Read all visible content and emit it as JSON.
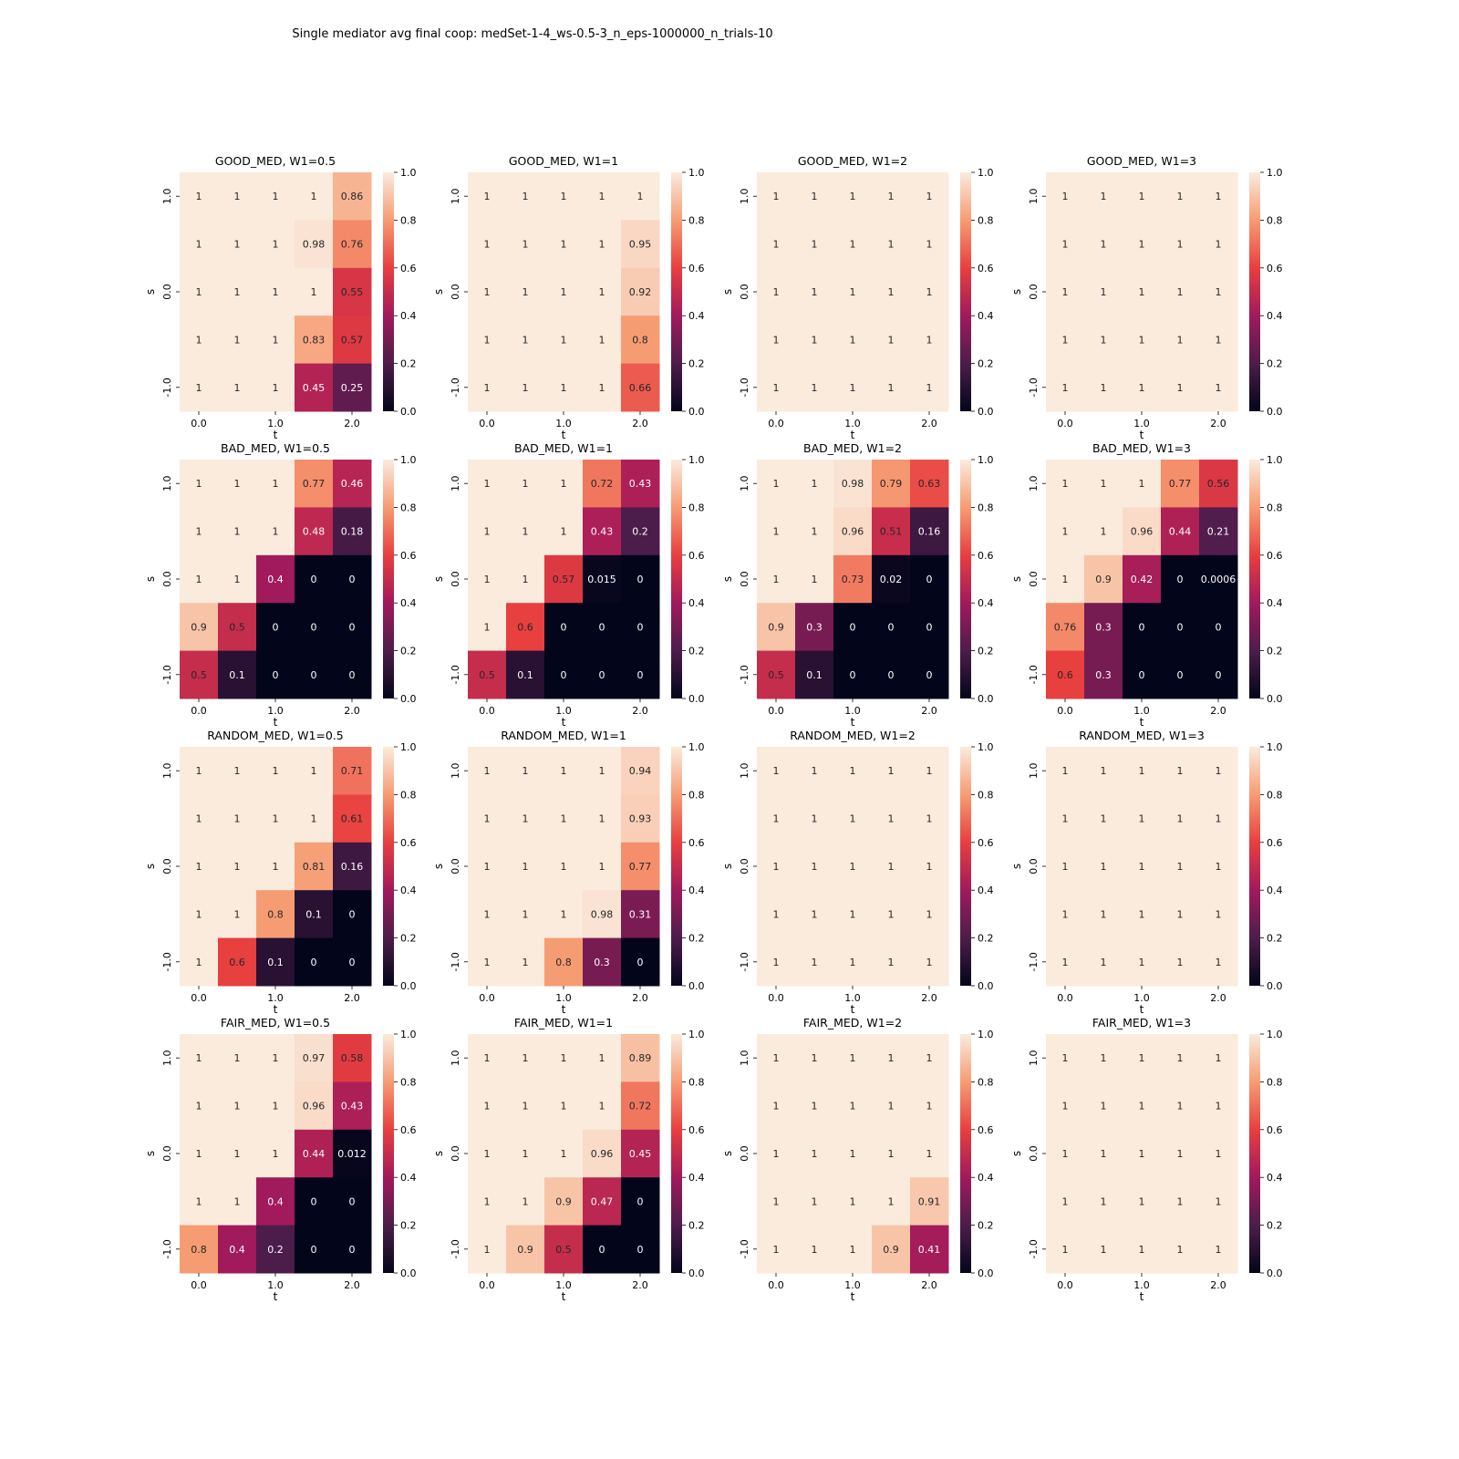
{
  "chart_data": {
    "type": "heatmap",
    "title": "Single mediator avg final coop: medSet-1-4_ws-0.5-3_n_eps-1000000_n_trials-10",
    "xlabel": "t",
    "ylabel": "s",
    "x_tick_labels": [
      "0.0",
      "1.0",
      "2.0"
    ],
    "y_tick_labels": [
      "1.0",
      "0.0",
      "-1.0"
    ],
    "colorbar": {
      "ticks": [
        "0.0",
        "0.2",
        "0.4",
        "0.6",
        "0.8",
        "1.0"
      ],
      "range": [
        0,
        1
      ],
      "colormap": "rocket",
      "stops": [
        "#03051a",
        "#4c1d4b",
        "#a11a5b",
        "#e83f3f",
        "#f69c73",
        "#faebdd"
      ]
    },
    "panels": [
      {
        "title": "GOOD_MED, W1=0.5",
        "rows": [
          [
            "1",
            "1",
            "1",
            "1",
            "0.86"
          ],
          [
            "1",
            "1",
            "1",
            "0.98",
            "0.76"
          ],
          [
            "1",
            "1",
            "1",
            "1",
            "0.55"
          ],
          [
            "1",
            "1",
            "1",
            "0.83",
            "0.57"
          ],
          [
            "1",
            "1",
            "1",
            "0.45",
            "0.25"
          ]
        ]
      },
      {
        "title": "GOOD_MED, W1=1",
        "rows": [
          [
            "1",
            "1",
            "1",
            "1",
            "1"
          ],
          [
            "1",
            "1",
            "1",
            "1",
            "0.95"
          ],
          [
            "1",
            "1",
            "1",
            "1",
            "0.92"
          ],
          [
            "1",
            "1",
            "1",
            "1",
            "0.8"
          ],
          [
            "1",
            "1",
            "1",
            "1",
            "0.66"
          ]
        ]
      },
      {
        "title": "GOOD_MED, W1=2",
        "rows": [
          [
            "1",
            "1",
            "1",
            "1",
            "1"
          ],
          [
            "1",
            "1",
            "1",
            "1",
            "1"
          ],
          [
            "1",
            "1",
            "1",
            "1",
            "1"
          ],
          [
            "1",
            "1",
            "1",
            "1",
            "1"
          ],
          [
            "1",
            "1",
            "1",
            "1",
            "1"
          ]
        ]
      },
      {
        "title": "GOOD_MED, W1=3",
        "rows": [
          [
            "1",
            "1",
            "1",
            "1",
            "1"
          ],
          [
            "1",
            "1",
            "1",
            "1",
            "1"
          ],
          [
            "1",
            "1",
            "1",
            "1",
            "1"
          ],
          [
            "1",
            "1",
            "1",
            "1",
            "1"
          ],
          [
            "1",
            "1",
            "1",
            "1",
            "1"
          ]
        ]
      },
      {
        "title": "BAD_MED, W1=0.5",
        "rows": [
          [
            "1",
            "1",
            "1",
            "0.77",
            "0.46"
          ],
          [
            "1",
            "1",
            "1",
            "0.48",
            "0.18"
          ],
          [
            "1",
            "1",
            "0.4",
            "0",
            "0"
          ],
          [
            "0.9",
            "0.5",
            "0",
            "0",
            "0"
          ],
          [
            "0.5",
            "0.1",
            "0",
            "0",
            "0"
          ]
        ]
      },
      {
        "title": "BAD_MED, W1=1",
        "rows": [
          [
            "1",
            "1",
            "1",
            "0.72",
            "0.43"
          ],
          [
            "1",
            "1",
            "1",
            "0.43",
            "0.2"
          ],
          [
            "1",
            "1",
            "0.57",
            "0.015",
            "0"
          ],
          [
            "1",
            "0.6",
            "0",
            "0",
            "0"
          ],
          [
            "0.5",
            "0.1",
            "0",
            "0",
            "0"
          ]
        ]
      },
      {
        "title": "BAD_MED, W1=2",
        "rows": [
          [
            "1",
            "1",
            "0.98",
            "0.79",
            "0.63"
          ],
          [
            "1",
            "1",
            "0.96",
            "0.51",
            "0.16"
          ],
          [
            "1",
            "1",
            "0.73",
            "0.02",
            "0"
          ],
          [
            "0.9",
            "0.3",
            "0",
            "0",
            "0"
          ],
          [
            "0.5",
            "0.1",
            "0",
            "0",
            "0"
          ]
        ]
      },
      {
        "title": "BAD_MED, W1=3",
        "rows": [
          [
            "1",
            "1",
            "1",
            "0.77",
            "0.56"
          ],
          [
            "1",
            "1",
            "0.96",
            "0.44",
            "0.21"
          ],
          [
            "1",
            "0.9",
            "0.42",
            "0",
            "0.0006"
          ],
          [
            "0.76",
            "0.3",
            "0",
            "0",
            "0"
          ],
          [
            "0.6",
            "0.3",
            "0",
            "0",
            "0"
          ]
        ]
      },
      {
        "title": "RANDOM_MED, W1=0.5",
        "rows": [
          [
            "1",
            "1",
            "1",
            "1",
            "0.71"
          ],
          [
            "1",
            "1",
            "1",
            "1",
            "0.61"
          ],
          [
            "1",
            "1",
            "1",
            "0.81",
            "0.16"
          ],
          [
            "1",
            "1",
            "0.8",
            "0.1",
            "0"
          ],
          [
            "1",
            "0.6",
            "0.1",
            "0",
            "0"
          ]
        ]
      },
      {
        "title": "RANDOM_MED, W1=1",
        "rows": [
          [
            "1",
            "1",
            "1",
            "1",
            "0.94"
          ],
          [
            "1",
            "1",
            "1",
            "1",
            "0.93"
          ],
          [
            "1",
            "1",
            "1",
            "1",
            "0.77"
          ],
          [
            "1",
            "1",
            "1",
            "0.98",
            "0.31"
          ],
          [
            "1",
            "1",
            "0.8",
            "0.3",
            "0"
          ]
        ]
      },
      {
        "title": "RANDOM_MED, W1=2",
        "rows": [
          [
            "1",
            "1",
            "1",
            "1",
            "1"
          ],
          [
            "1",
            "1",
            "1",
            "1",
            "1"
          ],
          [
            "1",
            "1",
            "1",
            "1",
            "1"
          ],
          [
            "1",
            "1",
            "1",
            "1",
            "1"
          ],
          [
            "1",
            "1",
            "1",
            "1",
            "1"
          ]
        ]
      },
      {
        "title": "RANDOM_MED, W1=3",
        "rows": [
          [
            "1",
            "1",
            "1",
            "1",
            "1"
          ],
          [
            "1",
            "1",
            "1",
            "1",
            "1"
          ],
          [
            "1",
            "1",
            "1",
            "1",
            "1"
          ],
          [
            "1",
            "1",
            "1",
            "1",
            "1"
          ],
          [
            "1",
            "1",
            "1",
            "1",
            "1"
          ]
        ]
      },
      {
        "title": "FAIR_MED, W1=0.5",
        "rows": [
          [
            "1",
            "1",
            "1",
            "0.97",
            "0.58"
          ],
          [
            "1",
            "1",
            "1",
            "0.96",
            "0.43"
          ],
          [
            "1",
            "1",
            "1",
            "0.44",
            "0.012"
          ],
          [
            "1",
            "1",
            "0.4",
            "0",
            "0"
          ],
          [
            "0.8",
            "0.4",
            "0.2",
            "0",
            "0"
          ]
        ]
      },
      {
        "title": "FAIR_MED, W1=1",
        "rows": [
          [
            "1",
            "1",
            "1",
            "1",
            "0.89"
          ],
          [
            "1",
            "1",
            "1",
            "1",
            "0.72"
          ],
          [
            "1",
            "1",
            "1",
            "0.96",
            "0.45"
          ],
          [
            "1",
            "1",
            "0.9",
            "0.47",
            "0"
          ],
          [
            "1",
            "0.9",
            "0.5",
            "0",
            "0"
          ]
        ]
      },
      {
        "title": "FAIR_MED, W1=2",
        "rows": [
          [
            "1",
            "1",
            "1",
            "1",
            "1"
          ],
          [
            "1",
            "1",
            "1",
            "1",
            "1"
          ],
          [
            "1",
            "1",
            "1",
            "1",
            "1"
          ],
          [
            "1",
            "1",
            "1",
            "1",
            "0.91"
          ],
          [
            "1",
            "1",
            "1",
            "0.9",
            "0.41"
          ]
        ]
      },
      {
        "title": "FAIR_MED, W1=3",
        "rows": [
          [
            "1",
            "1",
            "1",
            "1",
            "1"
          ],
          [
            "1",
            "1",
            "1",
            "1",
            "1"
          ],
          [
            "1",
            "1",
            "1",
            "1",
            "1"
          ],
          [
            "1",
            "1",
            "1",
            "1",
            "1"
          ],
          [
            "1",
            "1",
            "1",
            "1",
            "1"
          ]
        ]
      }
    ]
  }
}
